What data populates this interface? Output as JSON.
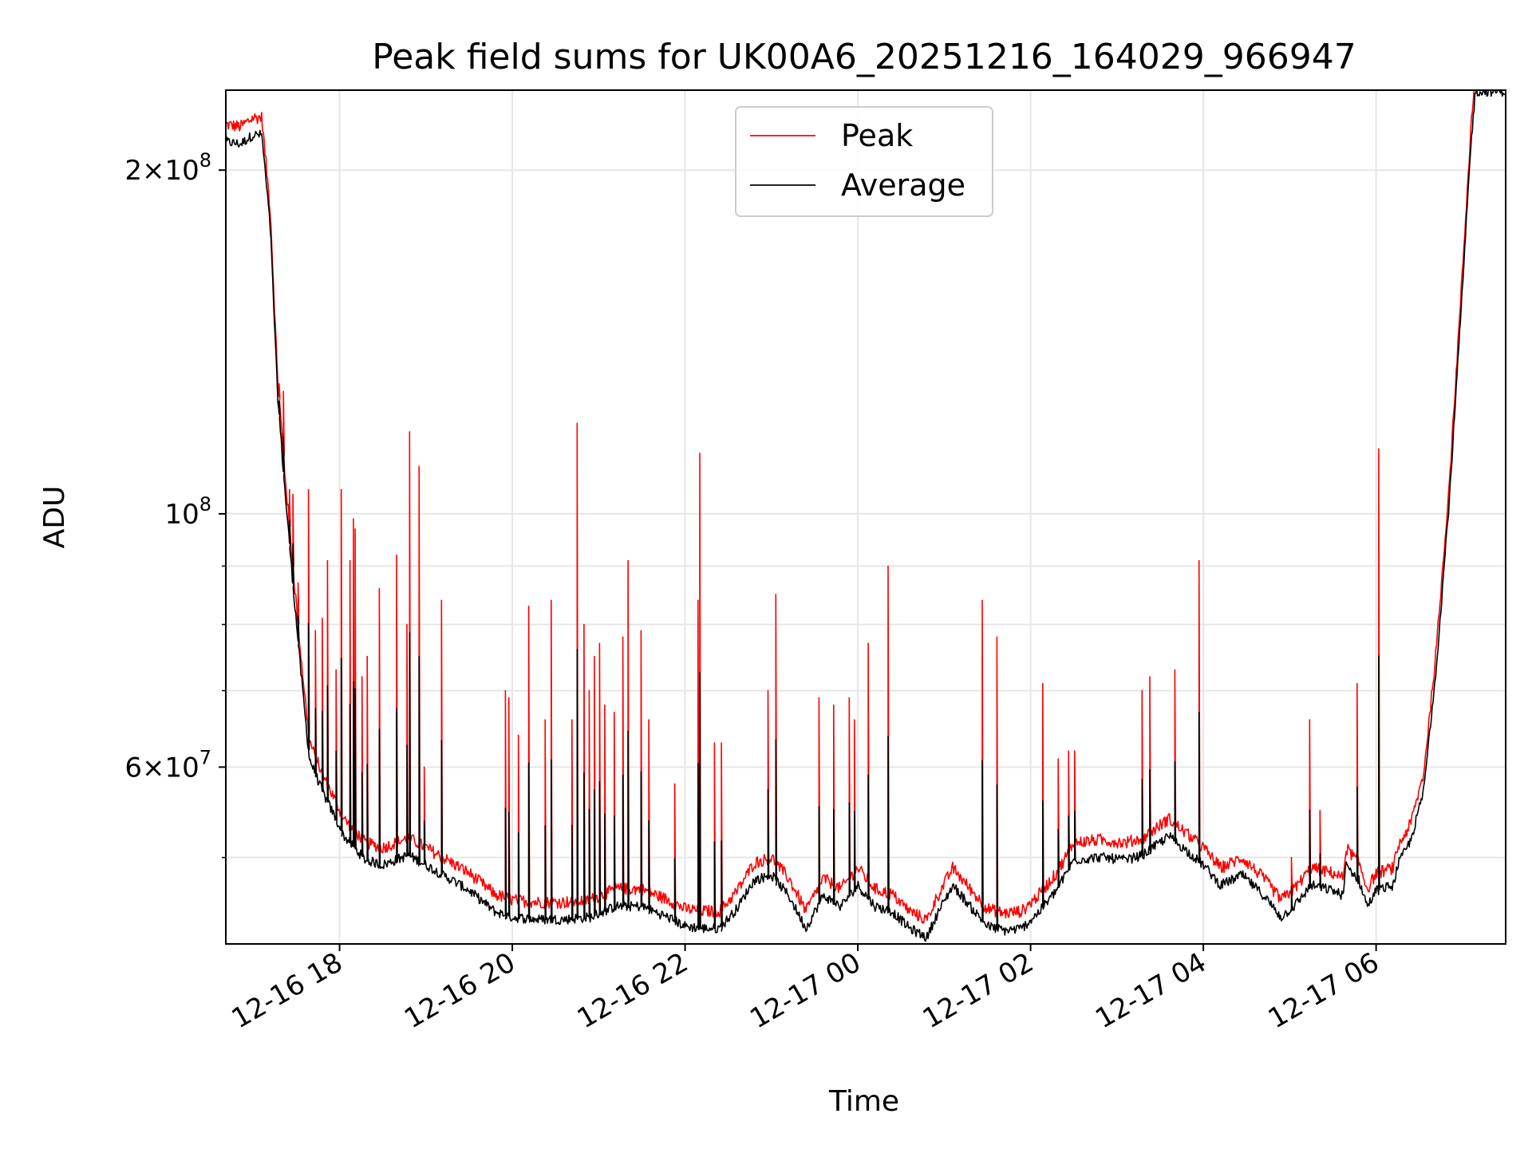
{
  "chart_data": {
    "type": "line",
    "title": "Peak field sums for UK00A6_20251216_164029_966947",
    "xlabel": "Time",
    "ylabel": "ADU",
    "yscale": "log",
    "ylim": [
      42000000,
      235000000
    ],
    "xlim_hours": [
      16.683,
      31.5
    ],
    "grid": true,
    "legend_position": "top-center",
    "x_ticks": [
      {
        "hour": 18,
        "label": "12-16 18"
      },
      {
        "hour": 20,
        "label": "12-16 20"
      },
      {
        "hour": 22,
        "label": "12-16 22"
      },
      {
        "hour": 24,
        "label": "12-17 00"
      },
      {
        "hour": 26,
        "label": "12-17 02"
      },
      {
        "hour": 28,
        "label": "12-17 04"
      },
      {
        "hour": 30,
        "label": "12-17 06"
      }
    ],
    "y_major_ticks": [
      {
        "value": 60000000,
        "mantissa": "6",
        "exponent": "7"
      },
      {
        "value": 100000000,
        "mantissa": "",
        "exponent": "8"
      },
      {
        "value": 200000000,
        "mantissa": "2",
        "exponent": "8"
      }
    ],
    "y_minor_ticks": [
      50000000,
      70000000,
      80000000,
      90000000
    ],
    "series": [
      {
        "name": "Peak",
        "color": "#ff0000",
        "baseline_offset": 1.02,
        "spikes": [
          [
            17.3,
            130000000
          ],
          [
            17.35,
            128000000
          ],
          [
            17.42,
            105000000
          ],
          [
            17.46,
            104000000
          ],
          [
            17.52,
            87000000
          ],
          [
            17.64,
            105000000
          ],
          [
            17.72,
            79000000
          ],
          [
            17.8,
            81000000
          ],
          [
            17.86,
            91000000
          ],
          [
            17.96,
            73000000
          ],
          [
            18.02,
            105000000
          ],
          [
            18.12,
            91000000
          ],
          [
            18.16,
            99000000
          ],
          [
            18.18,
            97000000
          ],
          [
            18.26,
            72000000
          ],
          [
            18.32,
            75000000
          ],
          [
            18.46,
            86000000
          ],
          [
            18.66,
            92000000
          ],
          [
            18.78,
            80000000
          ],
          [
            18.81,
            118000000
          ],
          [
            18.92,
            110000000
          ],
          [
            18.98,
            60000000
          ],
          [
            19.18,
            84000000
          ],
          [
            19.92,
            70000000
          ],
          [
            19.96,
            69000000
          ],
          [
            20.07,
            64000000
          ],
          [
            20.19,
            83000000
          ],
          [
            20.38,
            66000000
          ],
          [
            20.45,
            84000000
          ],
          [
            20.69,
            66000000
          ],
          [
            20.75,
            120000000
          ],
          [
            20.83,
            80000000
          ],
          [
            20.89,
            70000000
          ],
          [
            20.95,
            75000000
          ],
          [
            21.01,
            77000000
          ],
          [
            21.07,
            68000000
          ],
          [
            21.18,
            67000000
          ],
          [
            21.28,
            78000000
          ],
          [
            21.34,
            91000000
          ],
          [
            21.49,
            79000000
          ],
          [
            21.58,
            66000000
          ],
          [
            21.88,
            58000000
          ],
          [
            22.15,
            84000000
          ],
          [
            22.17,
            113000000
          ],
          [
            22.34,
            63000000
          ],
          [
            22.42,
            63000000
          ],
          [
            22.96,
            70000000
          ],
          [
            23.05,
            85000000
          ],
          [
            23.55,
            69000000
          ],
          [
            23.72,
            68000000
          ],
          [
            23.9,
            69000000
          ],
          [
            23.96,
            66000000
          ],
          [
            24.12,
            77000000
          ],
          [
            24.35,
            90000000
          ],
          [
            25.44,
            84000000
          ],
          [
            25.61,
            78000000
          ],
          [
            26.14,
            71000000
          ],
          [
            26.32,
            61000000
          ],
          [
            26.44,
            62000000
          ],
          [
            26.51,
            62000000
          ],
          [
            27.29,
            70000000
          ],
          [
            27.38,
            72000000
          ],
          [
            27.67,
            73000000
          ],
          [
            27.95,
            91000000
          ],
          [
            29.02,
            50000000
          ],
          [
            29.23,
            66000000
          ],
          [
            29.35,
            55000000
          ],
          [
            29.78,
            71000000
          ],
          [
            30.03,
            114000000
          ]
        ]
      },
      {
        "name": "Average",
        "color": "#000000",
        "baseline_offset": 0.985,
        "spike_fraction": 0.42
      }
    ],
    "baseline": [
      [
        16.683,
        215000000
      ],
      [
        16.85,
        214000000
      ],
      [
        17.0,
        218000000
      ],
      [
        17.1,
        218000000
      ],
      [
        17.2,
        180000000
      ],
      [
        17.28,
        130000000
      ],
      [
        17.36,
        108000000
      ],
      [
        17.45,
        90000000
      ],
      [
        17.55,
        74000000
      ],
      [
        17.65,
        62000000
      ],
      [
        17.8,
        58000000
      ],
      [
        17.95,
        55000000
      ],
      [
        18.05,
        53000000
      ],
      [
        18.3,
        50500000
      ],
      [
        18.5,
        50000000
      ],
      [
        18.8,
        51000000
      ],
      [
        19.0,
        50000000
      ],
      [
        19.3,
        48500000
      ],
      [
        19.5,
        47500000
      ],
      [
        19.8,
        45500000
      ],
      [
        20.0,
        45000000
      ],
      [
        20.3,
        44800000
      ],
      [
        20.6,
        44800000
      ],
      [
        20.9,
        45000000
      ],
      [
        21.2,
        46000000
      ],
      [
        21.5,
        46000000
      ],
      [
        21.8,
        45000000
      ],
      [
        22.0,
        44200000
      ],
      [
        22.2,
        44000000
      ],
      [
        22.4,
        44000000
      ],
      [
        22.6,
        45800000
      ],
      [
        22.8,
        48500000
      ],
      [
        23.0,
        49000000
      ],
      [
        23.2,
        47000000
      ],
      [
        23.4,
        44000000
      ],
      [
        23.6,
        47000000
      ],
      [
        23.8,
        46000000
      ],
      [
        24.0,
        48000000
      ],
      [
        24.2,
        46000000
      ],
      [
        24.4,
        45500000
      ],
      [
        24.6,
        44000000
      ],
      [
        24.8,
        43200000
      ],
      [
        24.9,
        45000000
      ],
      [
        25.1,
        48000000
      ],
      [
        25.3,
        46000000
      ],
      [
        25.5,
        44200000
      ],
      [
        25.7,
        43800000
      ],
      [
        25.9,
        44000000
      ],
      [
        26.1,
        45500000
      ],
      [
        26.3,
        47500000
      ],
      [
        26.5,
        50500000
      ],
      [
        26.8,
        50800000
      ],
      [
        27.1,
        50500000
      ],
      [
        27.3,
        51000000
      ],
      [
        27.6,
        53000000
      ],
      [
        27.8,
        51500000
      ],
      [
        28.0,
        50000000
      ],
      [
        28.2,
        48000000
      ],
      [
        28.45,
        49000000
      ],
      [
        28.7,
        47000000
      ],
      [
        28.9,
        45000000
      ],
      [
        29.05,
        46000000
      ],
      [
        29.25,
        48000000
      ],
      [
        29.5,
        47500000
      ],
      [
        29.62,
        47000000
      ],
      [
        29.65,
        50000000
      ],
      [
        29.8,
        48500000
      ],
      [
        29.9,
        46000000
      ],
      [
        30.0,
        47500000
      ],
      [
        30.2,
        48000000
      ],
      [
        30.25,
        50000000
      ],
      [
        30.4,
        52500000
      ],
      [
        30.55,
        58000000
      ],
      [
        30.7,
        75000000
      ],
      [
        30.85,
        105000000
      ],
      [
        31.0,
        160000000
      ],
      [
        31.1,
        215000000
      ],
      [
        31.15,
        238000000
      ]
    ]
  }
}
